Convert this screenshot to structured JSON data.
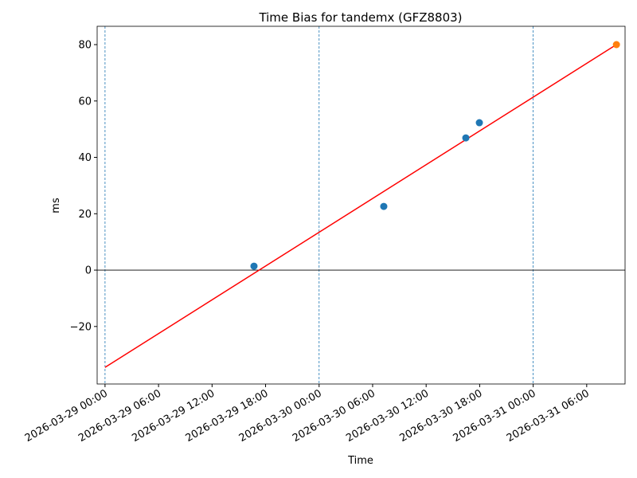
{
  "chart_data": {
    "type": "scatter",
    "title": "Time Bias for tandemx (GFZ8803)",
    "xlabel": "Time",
    "ylabel": "ms",
    "xlim": [
      "2026-03-28 23:07",
      "2026-03-31 10:18"
    ],
    "ylim": [
      -40.4,
      86.5
    ],
    "xticks": [
      "2026-03-29 00:00",
      "2026-03-29 06:00",
      "2026-03-29 12:00",
      "2026-03-29 18:00",
      "2026-03-30 00:00",
      "2026-03-30 06:00",
      "2026-03-30 12:00",
      "2026-03-30 18:00",
      "2026-03-31 00:00",
      "2026-03-31 06:00"
    ],
    "yticks": [
      {
        "value": -20,
        "label": "−20"
      },
      0,
      20,
      40,
      60,
      80
    ],
    "points": {
      "color": "#1f77b4",
      "x": [
        "2026-03-29 16:42",
        "2026-03-30 07:15",
        "2026-03-30 16:27",
        "2026-03-30 17:58"
      ],
      "y": [
        1.4,
        22.6,
        46.9,
        52.3
      ]
    },
    "highlight": {
      "color": "#ff7f0e",
      "x": [
        "2026-03-31 09:20"
      ],
      "y": [
        80
      ]
    },
    "fit_line": {
      "color": "#ff0000",
      "x": [
        "2026-03-29 00:00",
        "2026-03-31 09:20"
      ],
      "y": [
        -34.5,
        80
      ]
    },
    "vlines": {
      "color": "#1f77b4",
      "x": [
        "2026-03-29 00:00",
        "2026-03-30 00:00",
        "2026-03-31 00:00"
      ]
    },
    "hline": 0
  }
}
